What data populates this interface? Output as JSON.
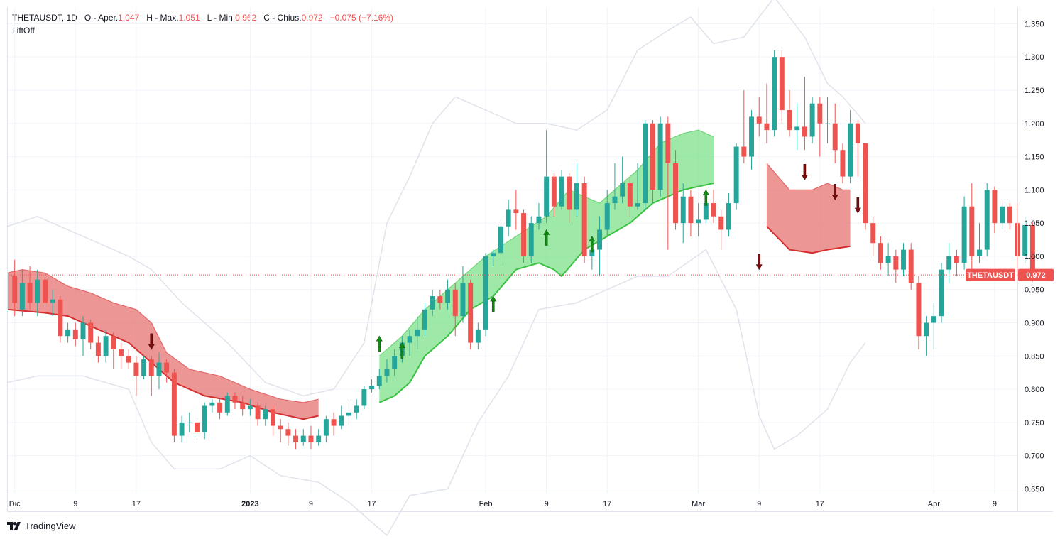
{
  "header": {
    "symbol_interval": "THETAUSDT, 1D",
    "open_label": "O - Aper.",
    "open": "1.047",
    "high_label": "H - Max.",
    "high": "1.051",
    "low_label": "L - Min.",
    "low": "0.962",
    "close_label": "C - Chius.",
    "close": "0.972",
    "change": "−0.075 (−7.16%)",
    "indicator": "LiftOff"
  },
  "price_tag": {
    "symbol": "THETAUSDT",
    "value": "0.972"
  },
  "footer": {
    "brand": "TradingView"
  },
  "colors": {
    "up": "#26a69a",
    "down": "#ef5350",
    "band": "#e0e3eb",
    "cloud_up": "#7ee28a",
    "cloud_down": "#e57373",
    "arrow_up": "#138a13",
    "arrow_down": "#7a0e0e"
  },
  "chart_data": {
    "type": "candlestick",
    "y_ticks": [
      "1.350",
      "1.300",
      "1.250",
      "1.200",
      "1.150",
      "1.100",
      "1.050",
      "1.000",
      "0.950",
      "0.900",
      "0.850",
      "0.800",
      "0.750",
      "0.700",
      "0.650"
    ],
    "ylim": [
      0.643,
      1.375
    ],
    "x_ticks": [
      {
        "label": "Dic",
        "day": 0
      },
      {
        "label": "9",
        "day": 8
      },
      {
        "label": "17",
        "day": 16
      },
      {
        "label": "2023",
        "day": 31
      },
      {
        "label": "9",
        "day": 39
      },
      {
        "label": "17",
        "day": 47
      },
      {
        "label": "Feb",
        "day": 62
      },
      {
        "label": "9",
        "day": 70
      },
      {
        "label": "17",
        "day": 78
      },
      {
        "label": "Mar",
        "day": 90
      },
      {
        "label": "9",
        "day": 98
      },
      {
        "label": "17",
        "day": 106
      },
      {
        "label": "Apr",
        "day": 121
      },
      {
        "label": "9",
        "day": 129
      }
    ],
    "first_day": -1,
    "last_day": 132,
    "candles": [
      [
        0.97,
        0.93,
        0.995,
        0.91
      ],
      [
        0.92,
        0.96,
        0.98,
        0.91
      ],
      [
        0.96,
        0.93,
        0.985,
        0.92
      ],
      [
        0.93,
        0.965,
        0.98,
        0.91
      ],
      [
        0.965,
        0.93,
        0.975,
        0.925
      ],
      [
        0.93,
        0.935,
        0.95,
        0.91
      ],
      [
        0.935,
        0.88,
        0.94,
        0.87
      ],
      [
        0.88,
        0.89,
        0.9,
        0.87
      ],
      [
        0.89,
        0.875,
        0.9,
        0.865
      ],
      [
        0.875,
        0.9,
        0.91,
        0.85
      ],
      [
        0.9,
        0.87,
        0.905,
        0.86
      ],
      [
        0.87,
        0.85,
        0.88,
        0.84
      ],
      [
        0.85,
        0.88,
        0.89,
        0.84
      ],
      [
        0.88,
        0.86,
        0.885,
        0.83
      ],
      [
        0.86,
        0.85,
        0.87,
        0.83
      ],
      [
        0.85,
        0.84,
        0.86,
        0.83
      ],
      [
        0.84,
        0.82,
        0.85,
        0.79
      ],
      [
        0.82,
        0.845,
        0.85,
        0.815
      ],
      [
        0.845,
        0.82,
        0.85,
        0.79
      ],
      [
        0.82,
        0.84,
        0.855,
        0.8
      ],
      [
        0.84,
        0.825,
        0.845,
        0.81
      ],
      [
        0.825,
        0.73,
        0.83,
        0.72
      ],
      [
        0.73,
        0.75,
        0.76,
        0.72
      ],
      [
        0.75,
        0.75,
        0.765,
        0.735
      ],
      [
        0.75,
        0.735,
        0.76,
        0.72
      ],
      [
        0.735,
        0.775,
        0.78,
        0.725
      ],
      [
        0.775,
        0.78,
        0.785,
        0.765
      ],
      [
        0.78,
        0.765,
        0.785,
        0.755
      ],
      [
        0.765,
        0.79,
        0.795,
        0.76
      ],
      [
        0.79,
        0.78,
        0.795,
        0.77
      ],
      [
        0.78,
        0.77,
        0.79,
        0.76
      ],
      [
        0.77,
        0.775,
        0.785,
        0.76
      ],
      [
        0.775,
        0.755,
        0.78,
        0.745
      ],
      [
        0.755,
        0.77,
        0.775,
        0.745
      ],
      [
        0.77,
        0.745,
        0.775,
        0.73
      ],
      [
        0.745,
        0.74,
        0.755,
        0.72
      ],
      [
        0.74,
        0.73,
        0.75,
        0.715
      ],
      [
        0.73,
        0.72,
        0.74,
        0.71
      ],
      [
        0.72,
        0.73,
        0.74,
        0.715
      ],
      [
        0.73,
        0.72,
        0.745,
        0.71
      ],
      [
        0.72,
        0.73,
        0.74,
        0.715
      ],
      [
        0.73,
        0.755,
        0.76,
        0.72
      ],
      [
        0.755,
        0.745,
        0.765,
        0.73
      ],
      [
        0.745,
        0.76,
        0.775,
        0.74
      ],
      [
        0.76,
        0.765,
        0.785,
        0.745
      ],
      [
        0.765,
        0.775,
        0.785,
        0.755
      ],
      [
        0.775,
        0.8,
        0.805,
        0.77
      ],
      [
        0.8,
        0.805,
        0.815,
        0.795
      ],
      [
        0.805,
        0.82,
        0.83,
        0.8
      ],
      [
        0.82,
        0.83,
        0.845,
        0.81
      ],
      [
        0.83,
        0.85,
        0.86,
        0.82
      ],
      [
        0.85,
        0.87,
        0.88,
        0.84
      ],
      [
        0.87,
        0.88,
        0.89,
        0.85
      ],
      [
        0.88,
        0.89,
        0.91,
        0.86
      ],
      [
        0.89,
        0.92,
        0.93,
        0.88
      ],
      [
        0.92,
        0.94,
        0.95,
        0.91
      ],
      [
        0.94,
        0.93,
        0.95,
        0.92
      ],
      [
        0.93,
        0.95,
        0.965,
        0.92
      ],
      [
        0.95,
        0.91,
        0.96,
        0.88
      ],
      [
        0.91,
        0.96,
        0.985,
        0.9
      ],
      [
        0.96,
        0.87,
        0.965,
        0.86
      ],
      [
        0.87,
        0.89,
        0.9,
        0.86
      ],
      [
        0.89,
        1.0,
        1.005,
        0.88
      ],
      [
        1.0,
        1.005,
        1.01,
        0.985
      ],
      [
        1.005,
        1.045,
        1.055,
        0.99
      ],
      [
        1.045,
        1.07,
        1.085,
        1.03
      ],
      [
        1.07,
        1.065,
        1.1,
        1.04
      ],
      [
        1.065,
        1.0,
        1.07,
        0.99
      ],
      [
        1.0,
        1.05,
        1.06,
        0.99
      ],
      [
        1.05,
        1.06,
        1.08,
        1.04
      ],
      [
        1.06,
        1.12,
        1.19,
        1.05
      ],
      [
        1.12,
        1.075,
        1.125,
        1.06
      ],
      [
        1.075,
        1.12,
        1.13,
        1.07
      ],
      [
        1.12,
        1.07,
        1.125,
        1.05
      ],
      [
        1.07,
        1.11,
        1.14,
        1.06
      ],
      [
        1.11,
        1.0,
        1.12,
        0.99
      ],
      [
        1.0,
        1.01,
        1.03,
        0.98
      ],
      [
        1.01,
        1.04,
        1.06,
        0.97
      ],
      [
        1.04,
        1.08,
        1.1,
        1.03
      ],
      [
        1.08,
        1.09,
        1.14,
        1.07
      ],
      [
        1.09,
        1.11,
        1.15,
        1.08
      ],
      [
        1.11,
        1.075,
        1.12,
        1.06
      ],
      [
        1.075,
        1.08,
        1.14,
        1.07
      ],
      [
        1.08,
        1.2,
        1.205,
        1.07
      ],
      [
        1.2,
        1.1,
        1.205,
        1.08
      ],
      [
        1.1,
        1.2,
        1.21,
        1.09
      ],
      [
        1.2,
        1.14,
        1.21,
        1.01
      ],
      [
        1.14,
        1.05,
        1.16,
        1.04
      ],
      [
        1.05,
        1.09,
        1.11,
        1.02
      ],
      [
        1.09,
        1.05,
        1.1,
        1.03
      ],
      [
        1.05,
        1.055,
        1.08,
        1.03
      ],
      [
        1.055,
        1.08,
        1.095,
        1.05
      ],
      [
        1.08,
        1.06,
        1.1,
        1.05
      ],
      [
        1.06,
        1.04,
        1.07,
        1.01
      ],
      [
        1.04,
        1.08,
        1.095,
        1.03
      ],
      [
        1.08,
        1.165,
        1.17,
        1.07
      ],
      [
        1.165,
        1.15,
        1.25,
        1.14
      ],
      [
        1.15,
        1.21,
        1.22,
        1.13
      ],
      [
        1.21,
        1.2,
        1.24,
        1.18
      ],
      [
        1.2,
        1.19,
        1.26,
        1.17
      ],
      [
        1.19,
        1.3,
        1.31,
        1.18
      ],
      [
        1.3,
        1.22,
        1.31,
        1.2
      ],
      [
        1.22,
        1.19,
        1.25,
        1.18
      ],
      [
        1.19,
        1.195,
        1.23,
        1.16
      ],
      [
        1.195,
        1.18,
        1.27,
        1.16
      ],
      [
        1.18,
        1.23,
        1.24,
        1.17
      ],
      [
        1.23,
        1.2,
        1.24,
        1.15
      ],
      [
        1.2,
        1.2,
        1.24,
        1.17
      ],
      [
        1.2,
        1.16,
        1.23,
        1.14
      ],
      [
        1.16,
        1.12,
        1.17,
        1.11
      ],
      [
        1.12,
        1.2,
        1.22,
        1.11
      ],
      [
        1.2,
        1.17,
        1.205,
        1.12
      ],
      [
        1.17,
        1.05,
        1.17,
        1.04
      ],
      [
        1.05,
        1.02,
        1.06,
        1.0
      ],
      [
        1.02,
        0.99,
        1.03,
        0.98
      ],
      [
        0.99,
        1.0,
        1.02,
        0.97
      ],
      [
        1.0,
        0.98,
        1.01,
        0.96
      ],
      [
        0.98,
        1.01,
        1.02,
        0.97
      ],
      [
        1.01,
        0.96,
        1.02,
        0.95
      ],
      [
        0.96,
        0.88,
        0.97,
        0.86
      ],
      [
        0.88,
        0.9,
        0.91,
        0.85
      ],
      [
        0.9,
        0.91,
        0.93,
        0.86
      ],
      [
        0.91,
        0.98,
        0.99,
        0.9
      ],
      [
        0.98,
        1.0,
        1.02,
        0.96
      ],
      [
        1.0,
        0.99,
        1.01,
        0.97
      ],
      [
        0.99,
        1.075,
        1.09,
        0.98
      ],
      [
        1.075,
        1.0,
        1.11,
        0.975
      ],
      [
        1.0,
        1.01,
        1.05,
        0.99
      ],
      [
        1.01,
        1.1,
        1.11,
        1.0
      ],
      [
        1.1,
        1.05,
        1.105,
        1.035
      ],
      [
        1.05,
        1.075,
        1.08,
        1.04
      ],
      [
        1.075,
        1.05,
        1.08,
        1.04
      ],
      [
        1.05,
        1.0,
        1.08,
        0.97
      ],
      [
        1.0,
        1.047,
        1.06,
        0.99
      ],
      [
        1.047,
        0.972,
        1.051,
        0.962
      ]
    ],
    "band_upper": [
      [
        -1,
        1.045
      ],
      [
        3,
        1.06
      ],
      [
        9,
        1.03
      ],
      [
        15,
        1.0
      ],
      [
        18,
        0.98
      ],
      [
        22,
        0.93
      ],
      [
        28,
        0.87
      ],
      [
        33,
        0.81
      ],
      [
        38,
        0.79
      ],
      [
        42,
        0.8
      ],
      [
        46,
        0.87
      ],
      [
        49,
        1.05
      ],
      [
        52,
        1.12
      ],
      [
        55,
        1.2
      ],
      [
        58,
        1.24
      ],
      [
        62,
        1.22
      ],
      [
        66,
        1.2
      ],
      [
        70,
        1.2
      ],
      [
        74,
        1.19
      ],
      [
        78,
        1.22
      ],
      [
        82,
        1.31
      ],
      [
        86,
        1.34
      ],
      [
        89,
        1.36
      ],
      [
        92,
        1.32
      ],
      [
        96,
        1.33
      ],
      [
        100,
        1.39
      ],
      [
        104,
        1.33
      ],
      [
        107,
        1.26
      ],
      [
        109,
        1.24
      ],
      [
        112,
        1.2
      ]
    ],
    "band_lower": [
      [
        -1,
        0.81
      ],
      [
        3,
        0.82
      ],
      [
        9,
        0.82
      ],
      [
        15,
        0.8
      ],
      [
        18,
        0.72
      ],
      [
        21,
        0.68
      ],
      [
        27,
        0.68
      ],
      [
        31,
        0.7
      ],
      [
        35,
        0.67
      ],
      [
        40,
        0.66
      ],
      [
        44,
        0.63
      ],
      [
        49,
        0.58
      ],
      [
        52,
        0.64
      ],
      [
        57,
        0.65
      ],
      [
        61,
        0.75
      ],
      [
        65,
        0.82
      ],
      [
        69,
        0.92
      ],
      [
        74,
        0.93
      ],
      [
        78,
        0.95
      ],
      [
        82,
        0.97
      ],
      [
        86,
        0.97
      ],
      [
        91,
        1.01
      ],
      [
        95,
        0.92
      ],
      [
        98,
        0.76
      ],
      [
        100,
        0.71
      ],
      [
        103,
        0.73
      ],
      [
        107,
        0.77
      ],
      [
        110,
        0.84
      ],
      [
        112,
        0.87
      ]
    ],
    "cloud_down": [
      {
        "upper": [
          [
            -1,
            0.975
          ],
          [
            1,
            0.98
          ],
          [
            4,
            0.975
          ],
          [
            7,
            0.955
          ],
          [
            10,
            0.945
          ],
          [
            13,
            0.93
          ],
          [
            16,
            0.92
          ],
          [
            18,
            0.9
          ],
          [
            20,
            0.855
          ],
          [
            23,
            0.83
          ],
          [
            27,
            0.82
          ],
          [
            31,
            0.8
          ],
          [
            35,
            0.785
          ],
          [
            38,
            0.78
          ],
          [
            40,
            0.785
          ]
        ],
        "lower": [
          [
            -1,
            0.92
          ],
          [
            4,
            0.915
          ],
          [
            7,
            0.91
          ],
          [
            11,
            0.89
          ],
          [
            15,
            0.87
          ],
          [
            18,
            0.84
          ],
          [
            21,
            0.81
          ],
          [
            25,
            0.79
          ],
          [
            30,
            0.78
          ],
          [
            34,
            0.765
          ],
          [
            38,
            0.755
          ],
          [
            40,
            0.76
          ]
        ]
      },
      {
        "upper": [
          [
            99,
            1.14
          ],
          [
            102,
            1.1
          ],
          [
            105,
            1.1
          ],
          [
            107,
            1.11
          ],
          [
            109,
            1.1
          ],
          [
            110,
            1.1
          ]
        ],
        "lower": [
          [
            99,
            1.045
          ],
          [
            102,
            1.01
          ],
          [
            105,
            1.005
          ],
          [
            107,
            1.01
          ],
          [
            110,
            1.015
          ]
        ]
      }
    ],
    "cloud_up": {
      "upper": [
        [
          48,
          0.85
        ],
        [
          51,
          0.88
        ],
        [
          54,
          0.92
        ],
        [
          58,
          0.96
        ],
        [
          62,
          1.0
        ],
        [
          66,
          1.03
        ],
        [
          70,
          1.06
        ],
        [
          73,
          1.1
        ],
        [
          75,
          1.09
        ],
        [
          77,
          1.08
        ],
        [
          79,
          1.1
        ],
        [
          82,
          1.13
        ],
        [
          85,
          1.17
        ],
        [
          88,
          1.185
        ],
        [
          90,
          1.19
        ],
        [
          92,
          1.18
        ]
      ],
      "lower": [
        [
          48,
          0.78
        ],
        [
          50,
          0.79
        ],
        [
          52,
          0.81
        ],
        [
          54,
          0.85
        ],
        [
          57,
          0.88
        ],
        [
          60,
          0.92
        ],
        [
          63,
          0.94
        ],
        [
          66,
          0.98
        ],
        [
          69,
          0.99
        ],
        [
          71,
          0.98
        ],
        [
          72,
          0.97
        ],
        [
          75,
          1.01
        ],
        [
          78,
          1.03
        ],
        [
          81,
          1.05
        ],
        [
          84,
          1.08
        ],
        [
          88,
          1.1
        ],
        [
          90,
          1.105
        ],
        [
          92,
          1.11
        ]
      ]
    },
    "signals_up": [
      [
        48,
        0.88
      ],
      [
        51,
        0.87
      ],
      [
        63,
        0.94
      ],
      [
        70,
        1.04
      ],
      [
        76,
        1.03
      ],
      [
        91,
        1.1
      ]
    ],
    "signals_down": [
      [
        18,
        0.86
      ],
      [
        98,
        0.98
      ],
      [
        104,
        1.115
      ],
      [
        108,
        1.085
      ],
      [
        111,
        1.065
      ]
    ],
    "last_price": 0.972
  }
}
